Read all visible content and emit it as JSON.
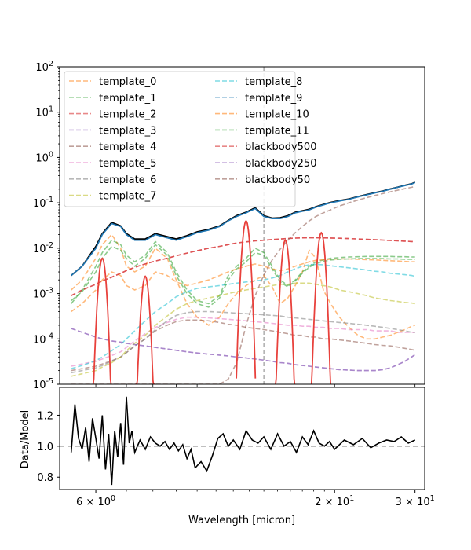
{
  "chart_data": [
    {
      "type": "line",
      "title": "",
      "xlabel": "",
      "ylabel": "",
      "xscale": "log",
      "yscale": "log",
      "xlim": [
        5.0,
        31.5
      ],
      "ylim": [
        1e-05,
        100
      ],
      "ytick_labels": [
        "10^{-5}",
        "10^{-4}",
        "10^{-3}",
        "10^{-2}",
        "10^{-1}",
        "10^{0}",
        "10^{1}",
        "10^{2}"
      ],
      "vline_x": 14.0,
      "legend": {
        "location": "upper-left",
        "columns": 2,
        "entries": [
          "template_0",
          "template_1",
          "template_2",
          "template_3",
          "template_4",
          "template_5",
          "template_6",
          "template_7",
          "template_8",
          "template_9",
          "template_10",
          "template_11",
          "blackbody500",
          "blackbody250",
          "blackbody50"
        ]
      },
      "x": [
        5.3,
        5.6,
        6.0,
        6.2,
        6.5,
        6.8,
        7.0,
        7.3,
        7.7,
        8.1,
        8.6,
        9.0,
        9.5,
        10.0,
        10.6,
        11.2,
        11.7,
        12.2,
        12.8,
        13.4,
        14.0,
        14.6,
        15.2,
        15.8,
        16.4,
        17.0,
        17.6,
        18.2,
        18.9,
        19.6,
        20.5,
        21.5,
        22.5,
        23.5,
        24.5,
        25.5,
        26.5,
        27.5,
        28.5,
        29.5,
        30.0
      ],
      "series": [
        {
          "name": "template_0",
          "color": "#ff7f0e",
          "y": [
            0.0012,
            0.002,
            0.006,
            0.012,
            0.02,
            0.01,
            0.004,
            0.003,
            0.004,
            0.01,
            0.006,
            0.002,
            0.0006,
            0.0003,
            0.0002,
            0.0003,
            0.0006,
            0.001,
            0.0015,
            0.002,
            0.0025,
            0.0014,
            0.0006,
            0.0008,
            0.0015,
            0.003,
            0.009,
            0.006,
            0.0012,
            0.0006,
            0.0003,
            0.00018,
            0.00012,
            0.0001,
            0.0001,
            0.00011,
            0.00012,
            0.00014,
            0.00016,
            0.00019,
            0.0002
          ]
        },
        {
          "name": "template_1",
          "color": "#2ca02c",
          "y": [
            0.0006,
            0.0012,
            0.004,
            0.008,
            0.015,
            0.012,
            0.007,
            0.005,
            0.007,
            0.014,
            0.008,
            0.003,
            0.0012,
            0.0007,
            0.0006,
            0.0009,
            0.0025,
            0.004,
            0.006,
            0.01,
            0.008,
            0.004,
            0.002,
            0.0015,
            0.002,
            0.003,
            0.004,
            0.005,
            0.0055,
            0.006,
            0.0062,
            0.0064,
            0.0065,
            0.0066,
            0.0066,
            0.0066,
            0.0066,
            0.0065,
            0.0065,
            0.0064,
            0.0064
          ]
        },
        {
          "name": "template_2",
          "color": "#d62728",
          "y": [
            0.0009,
            0.0012,
            0.0016,
            0.0019,
            0.0023,
            0.0028,
            0.0032,
            0.0038,
            0.0045,
            0.0052,
            0.006,
            0.0068,
            0.0078,
            0.0088,
            0.01,
            0.011,
            0.012,
            0.013,
            0.0138,
            0.0145,
            0.015,
            0.0155,
            0.016,
            0.0164,
            0.0167,
            0.0169,
            0.017,
            0.017,
            0.0169,
            0.0168,
            0.0166,
            0.0163,
            0.016,
            0.0157,
            0.0154,
            0.0151,
            0.0148,
            0.0145,
            0.0143,
            0.014,
            0.0139
          ]
        },
        {
          "name": "template_3",
          "color": "#9467bd",
          "y": [
            0.00017,
            0.00014,
            0.00011,
            0.0001,
            9e-05,
            8.5e-05,
            8e-05,
            7.5e-05,
            7e-05,
            6.5e-05,
            6e-05,
            5.6e-05,
            5.2e-05,
            4.9e-05,
            4.6e-05,
            4.4e-05,
            4.2e-05,
            4e-05,
            3.8e-05,
            3.6e-05,
            3.4e-05,
            3.2e-05,
            3e-05,
            2.9e-05,
            2.7e-05,
            2.6e-05,
            2.5e-05,
            2.4e-05,
            2.3e-05,
            2.2e-05,
            2.1e-05,
            2.05e-05,
            2e-05,
            2e-05,
            2e-05,
            2.1e-05,
            2.3e-05,
            2.7e-05,
            3.2e-05,
            4e-05,
            4.5e-05
          ]
        },
        {
          "name": "template_4",
          "color": "#8c564b",
          "y": [
            2e-05,
            2.2e-05,
            2.5e-05,
            2.8e-05,
            3.3e-05,
            4e-05,
            5e-05,
            7e-05,
            0.0001,
            0.00015,
            0.0002,
            0.00024,
            0.00026,
            0.00026,
            0.00025,
            0.00023,
            0.00021,
            0.0002,
            0.00018,
            0.00017,
            0.00016,
            0.00015,
            0.00014,
            0.00013,
            0.00012,
            0.00012,
            0.00011,
            0.00011,
            0.0001,
            0.0001,
            9.5e-05,
            9e-05,
            8.5e-05,
            8e-05,
            7.5e-05,
            7.2e-05,
            7e-05,
            6.6e-05,
            6.2e-05,
            5.8e-05,
            5.6e-05
          ]
        },
        {
          "name": "template_5",
          "color": "#e377c2",
          "y": [
            2.5e-05,
            2.8e-05,
            3.2e-05,
            3.6e-05,
            4.3e-05,
            5.2e-05,
            6.5e-05,
            9e-05,
            0.00013,
            0.00018,
            0.00023,
            0.00027,
            0.0003,
            0.0003,
            0.00029,
            0.00028,
            0.00027,
            0.00026,
            0.00025,
            0.00024,
            0.00023,
            0.00022,
            0.00021,
            0.0002,
            0.0002,
            0.00019,
            0.00019,
            0.00018,
            0.00018,
            0.00017,
            0.00017,
            0.00016,
            0.00016,
            0.00016,
            0.00015,
            0.00015,
            0.00015,
            0.00014,
            0.00014,
            0.00014,
            0.00014
          ]
        },
        {
          "name": "template_6",
          "color": "#7f7f7f",
          "y": [
            1.8e-05,
            2e-05,
            2.3e-05,
            2.6e-05,
            3.2e-05,
            4e-05,
            5e-05,
            7e-05,
            0.0001,
            0.00016,
            0.00025,
            0.00033,
            0.00038,
            0.0004,
            0.0004,
            0.00039,
            0.00038,
            0.00037,
            0.00036,
            0.00035,
            0.00034,
            0.00033,
            0.00032,
            0.0003,
            0.00029,
            0.00028,
            0.00027,
            0.00026,
            0.00025,
            0.00024,
            0.00023,
            0.00022,
            0.00021,
            0.0002,
            0.00019,
            0.00018,
            0.00017,
            0.00016,
            0.00015,
            0.00014,
            0.00014
          ]
        },
        {
          "name": "template_7",
          "color": "#bcbd22",
          "y": [
            1.5e-05,
            1.7e-05,
            2e-05,
            2.4e-05,
            3e-05,
            4e-05,
            5.5e-05,
            8e-05,
            0.00012,
            0.0002,
            0.00032,
            0.00045,
            0.0006,
            0.0007,
            0.0008,
            0.0009,
            0.001,
            0.0011,
            0.0012,
            0.0013,
            0.0014,
            0.0015,
            0.0016,
            0.0016,
            0.0017,
            0.0017,
            0.0017,
            0.0016,
            0.0015,
            0.0014,
            0.0012,
            0.0011,
            0.001,
            0.0009,
            0.0008,
            0.00075,
            0.0007,
            0.00067,
            0.00064,
            0.00062,
            0.0006
          ]
        },
        {
          "name": "template_8",
          "color": "#17becf",
          "y": [
            2.2e-05,
            2.6e-05,
            3.3e-05,
            4e-05,
            5.5e-05,
            7.5e-05,
            0.0001,
            0.00015,
            0.00025,
            0.0004,
            0.0006,
            0.00085,
            0.0011,
            0.0013,
            0.0014,
            0.0015,
            0.0016,
            0.0017,
            0.0018,
            0.0019,
            0.002,
            0.0022,
            0.0025,
            0.003,
            0.0035,
            0.004,
            0.0043,
            0.0044,
            0.0043,
            0.0041,
            0.0039,
            0.0037,
            0.0035,
            0.0033,
            0.0031,
            0.003,
            0.0028,
            0.0027,
            0.0026,
            0.0025,
            0.0024
          ]
        },
        {
          "name": "template_9",
          "color": "#1f77b4",
          "y": [
            0.0025,
            0.004,
            0.01,
            0.02,
            0.035,
            0.03,
            0.02,
            0.015,
            0.015,
            0.02,
            0.017,
            0.015,
            0.018,
            0.022,
            0.025,
            0.03,
            0.04,
            0.05,
            0.06,
            0.075,
            0.05,
            0.045,
            0.045,
            0.05,
            0.06,
            0.065,
            0.07,
            0.08,
            0.09,
            0.1,
            0.11,
            0.12,
            0.135,
            0.15,
            0.165,
            0.18,
            0.2,
            0.22,
            0.24,
            0.26,
            0.28
          ]
        },
        {
          "name": "template_10",
          "color": "#ff7f0e",
          "y": [
            0.0004,
            0.0006,
            0.0012,
            0.002,
            0.003,
            0.0025,
            0.0015,
            0.0012,
            0.0015,
            0.003,
            0.0025,
            0.0018,
            0.0015,
            0.0017,
            0.002,
            0.0025,
            0.003,
            0.0035,
            0.004,
            0.0045,
            0.004,
            0.0035,
            0.0032,
            0.0035,
            0.004,
            0.0045,
            0.005,
            0.0054,
            0.0056,
            0.0057,
            0.0058,
            0.0058,
            0.0057,
            0.0056,
            0.0055,
            0.0054,
            0.0053,
            0.0052,
            0.0051,
            0.005,
            0.005
          ]
        },
        {
          "name": "template_11",
          "color": "#2ca02c",
          "y": [
            0.0007,
            0.0011,
            0.003,
            0.006,
            0.011,
            0.009,
            0.006,
            0.004,
            0.006,
            0.012,
            0.007,
            0.0025,
            0.001,
            0.0006,
            0.0005,
            0.0008,
            0.002,
            0.0035,
            0.005,
            0.008,
            0.007,
            0.0035,
            0.0018,
            0.0014,
            0.0019,
            0.0028,
            0.0038,
            0.0046,
            0.0051,
            0.0055,
            0.0057,
            0.0058,
            0.0059,
            0.0059,
            0.0059,
            0.0059,
            0.0058,
            0.0058,
            0.0057,
            0.0057,
            0.0057
          ]
        },
        {
          "name": "blackbody500",
          "color": "#d62728",
          "y": [
            0.0009,
            0.0012,
            0.0016,
            0.0019,
            0.0023,
            0.0028,
            0.0032,
            0.0038,
            0.0045,
            0.0052,
            0.006,
            0.0068,
            0.0078,
            0.0088,
            0.01,
            0.011,
            0.012,
            0.013,
            0.0138,
            0.0145,
            0.015,
            0.0155,
            0.016,
            0.0164,
            0.0167,
            0.0169,
            0.017,
            0.017,
            0.0169,
            0.0168,
            0.0166,
            0.0163,
            0.016,
            0.0157,
            0.0154,
            0.0151,
            0.0148,
            0.0145,
            0.0143,
            0.014,
            0.0139
          ]
        },
        {
          "name": "blackbody250",
          "color": "#9467bd",
          "y": [
            0.00017,
            0.00014,
            0.00011,
            0.0001,
            9e-05,
            8.5e-05,
            8e-05,
            7.5e-05,
            7e-05,
            6.5e-05,
            6e-05,
            5.6e-05,
            5.2e-05,
            4.9e-05,
            4.6e-05,
            4.4e-05,
            4.2e-05,
            4e-05,
            3.8e-05,
            3.6e-05,
            3.4e-05,
            3.2e-05,
            3e-05,
            2.9e-05,
            2.7e-05,
            2.6e-05,
            2.5e-05,
            2.4e-05,
            2.3e-05,
            2.2e-05,
            2.1e-05,
            2.05e-05,
            2e-05,
            2e-05,
            2e-05,
            2.1e-05,
            2.3e-05,
            2.7e-05,
            3.2e-05,
            4e-05,
            4.5e-05
          ]
        },
        {
          "name": "blackbody50",
          "color": "#8c564b",
          "y": [
            1e-05,
            1e-05,
            1e-05,
            1e-05,
            1e-05,
            1e-05,
            1e-05,
            1e-05,
            1e-05,
            1e-05,
            1e-05,
            1e-05,
            1e-05,
            1e-05,
            1e-05,
            1e-05,
            1.3e-05,
            3e-05,
            0.0002,
            0.0009,
            0.0026,
            0.0055,
            0.0095,
            0.015,
            0.022,
            0.03,
            0.04,
            0.05,
            0.06,
            0.07,
            0.085,
            0.1,
            0.115,
            0.13,
            0.145,
            0.16,
            0.175,
            0.19,
            0.205,
            0.22,
            0.23
          ]
        },
        {
          "name": "Data",
          "color": "#000000",
          "y": [
            0.0025,
            0.004,
            0.011,
            0.021,
            0.037,
            0.031,
            0.021,
            0.016,
            0.016,
            0.021,
            0.018,
            0.016,
            0.019,
            0.023,
            0.026,
            0.031,
            0.041,
            0.052,
            0.062,
            0.078,
            0.052,
            0.046,
            0.047,
            0.052,
            0.062,
            0.067,
            0.072,
            0.082,
            0.092,
            0.102,
            0.112,
            0.122,
            0.137,
            0.152,
            0.167,
            0.182,
            0.202,
            0.222,
            0.243,
            0.263,
            0.285
          ]
        }
      ],
      "lines": [
        {
          "center": 6.2,
          "peak": 0.006
        },
        {
          "center": 7.7,
          "peak": 0.0024
        },
        {
          "center": 12.8,
          "peak": 0.04
        },
        {
          "center": 15.6,
          "peak": 0.015
        },
        {
          "center": 18.7,
          "peak": 0.022
        }
      ]
    },
    {
      "type": "line",
      "title": "",
      "xlabel": "Wavelength [micron]",
      "ylabel": "Data/Model",
      "xscale": "log",
      "yscale": "linear",
      "xlim": [
        5.0,
        31.5
      ],
      "ylim": [
        0.72,
        1.38
      ],
      "ytick_labels": [
        "0.8",
        "1.0",
        "1.2"
      ],
      "xtick_labels": [
        "6 × 10^{0}",
        "2 × 10^{1}",
        "3 × 10^{1}"
      ],
      "hline_y": 1.0,
      "x": [
        5.3,
        5.4,
        5.5,
        5.6,
        5.7,
        5.8,
        5.9,
        6.0,
        6.1,
        6.2,
        6.3,
        6.4,
        6.5,
        6.6,
        6.7,
        6.8,
        6.9,
        7.0,
        7.1,
        7.2,
        7.3,
        7.5,
        7.7,
        7.9,
        8.1,
        8.3,
        8.5,
        8.7,
        8.9,
        9.1,
        9.3,
        9.5,
        9.7,
        9.9,
        10.2,
        10.5,
        10.8,
        11.1,
        11.4,
        11.7,
        12.0,
        12.4,
        12.8,
        13.2,
        13.6,
        14.0,
        14.5,
        15.0,
        15.5,
        16.0,
        16.5,
        17.0,
        17.5,
        18.0,
        18.5,
        19.0,
        19.5,
        20.0,
        21.0,
        22.0,
        23.0,
        24.0,
        25.0,
        26.0,
        27.0,
        28.0,
        29.0,
        30.0
      ],
      "series": [
        {
          "name": "Data/Model",
          "color": "#000000",
          "y": [
            0.96,
            1.27,
            1.05,
            0.98,
            1.12,
            0.9,
            1.18,
            1.05,
            0.92,
            1.2,
            0.85,
            1.08,
            0.75,
            1.1,
            0.93,
            1.15,
            0.88,
            1.32,
            1.02,
            1.1,
            0.96,
            1.04,
            0.98,
            1.06,
            1.02,
            1.0,
            1.03,
            0.98,
            1.02,
            0.97,
            1.01,
            0.92,
            0.98,
            0.86,
            0.9,
            0.84,
            0.94,
            1.05,
            1.08,
            1.0,
            1.04,
            0.98,
            1.1,
            1.04,
            1.02,
            1.06,
            0.98,
            1.08,
            1.0,
            1.03,
            0.96,
            1.06,
            1.01,
            1.1,
            1.02,
            1.0,
            1.03,
            0.98,
            1.04,
            1.01,
            1.05,
            0.99,
            1.02,
            1.04,
            1.03,
            1.06,
            1.02,
            1.04
          ]
        }
      ]
    }
  ]
}
